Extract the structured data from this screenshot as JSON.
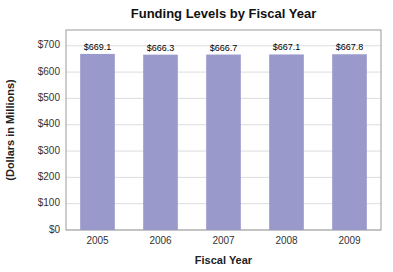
{
  "chart_data": {
    "type": "bar",
    "title": "Funding Levels by Fiscal Year",
    "categories": [
      "2005",
      "2006",
      "2007",
      "2008",
      "2009"
    ],
    "values": [
      669.1,
      666.3,
      666.7,
      667.1,
      667.8
    ],
    "value_labels": [
      "$669.1",
      "$666.3",
      "$666.7",
      "$667.1",
      "$667.8"
    ],
    "data_labels": true,
    "color": "#9999CC",
    "xlabel": "Fiscal Year",
    "ylabel": "(Dollars in Millions)",
    "ylim": [
      0,
      760
    ],
    "yticks": [
      {
        "value": 0,
        "label": "$0"
      },
      {
        "value": 100,
        "label": "$100"
      },
      {
        "value": 200,
        "label": "$200"
      },
      {
        "value": 300,
        "label": "$300"
      },
      {
        "value": 400,
        "label": "$400"
      },
      {
        "value": 500,
        "label": "$500"
      },
      {
        "value": 600,
        "label": "$600"
      },
      {
        "value": 700,
        "label": "$700"
      }
    ],
    "grid": true
  }
}
